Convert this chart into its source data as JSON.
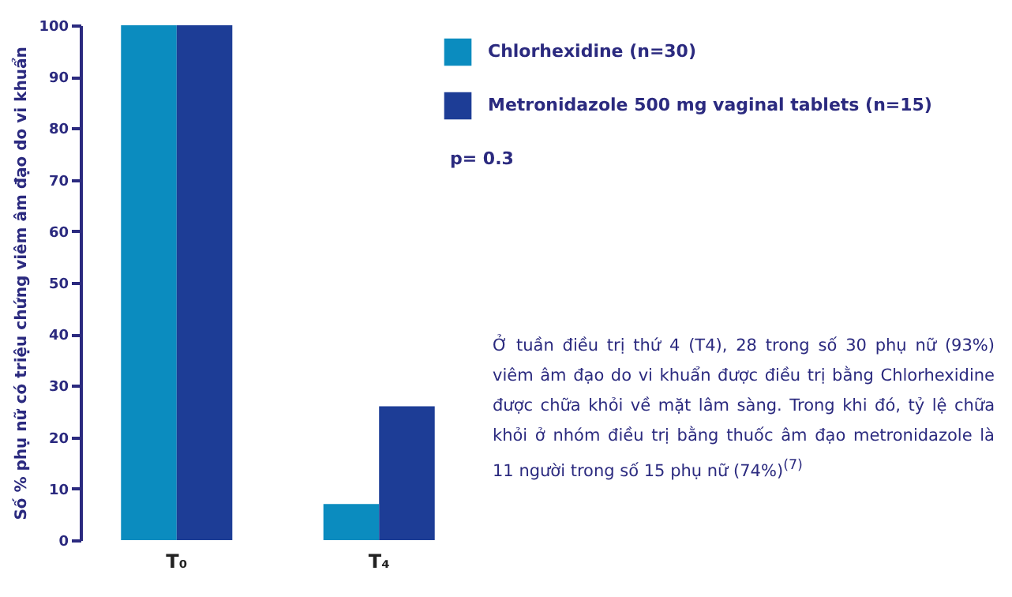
{
  "chart_data": {
    "type": "bar",
    "ylabel": "Số % phụ nữ có triệu chứng viêm âm đạo do vi khuẩn",
    "categories": [
      "T₀",
      "T₄"
    ],
    "series": [
      {
        "name": "Chlorhexidine   (n=30)",
        "color": "#0b8cbf",
        "values": [
          100,
          7
        ]
      },
      {
        "name": "Metronidazole 500 mg vaginal tablets (n=15)",
        "color": "#1d3d96",
        "values": [
          100,
          26
        ]
      }
    ],
    "ylim": [
      0,
      100
    ],
    "yticks": [
      0,
      10,
      20,
      30,
      40,
      50,
      60,
      70,
      80,
      90,
      100
    ],
    "legend": "top right",
    "annotations": [
      "p= 0.3",
      "Ở tuần điều trị thứ 4 (T4), 28 trong số 30 phụ nữ (93%) viêm âm đạo do vi khuẩn được điều trị bằng Chlorhexidine được chữa khỏi về mặt lâm sàng. Trong khi đó, tỷ lệ chữa khỏi ở nhóm điều trị bằng thuốc âm đạo metronidazole là 11 người trong số 15 phụ nữ (74%)$^{(7)}$"
    ]
  }
}
